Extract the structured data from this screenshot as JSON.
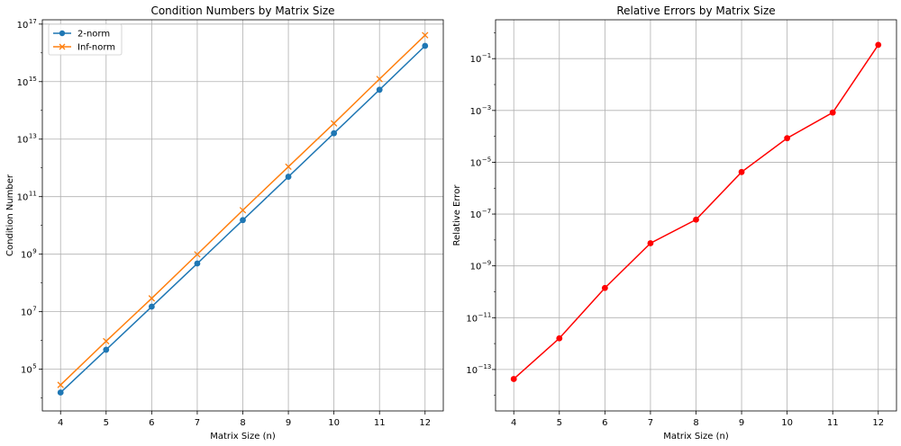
{
  "chart_data": [
    {
      "type": "line",
      "title": "Condition Numbers by Matrix Size",
      "xlabel": "Matrix Size (n)",
      "ylabel": "Condition Number",
      "yscale": "log",
      "grid": true,
      "legend_position": "top-left",
      "x": [
        4,
        5,
        6,
        7,
        8,
        9,
        10,
        11,
        12
      ],
      "xlim": [
        3.6,
        12.4
      ],
      "ylim_exp": [
        3.55,
        17.15
      ],
      "yticks": [
        "10^5",
        "10^7",
        "10^9",
        "10^11",
        "10^13",
        "10^15",
        "10^17"
      ],
      "series": [
        {
          "name": "2-norm",
          "color": "#1f77b4",
          "marker": "circle",
          "values": [
            15500.0,
            477000.0,
            15000000.0,
            475000000.0,
            15300000000.0,
            493000000000.0,
            16000000000000.0,
            522000000000000.0,
            1.75e+16
          ]
        },
        {
          "name": "Inf-norm",
          "color": "#ff7f0e",
          "marker": "x",
          "values": [
            28500.0,
            944000.0,
            29100000.0,
            985000000.0,
            33900000000.0,
            1100000000000.0,
            35400000000000.0,
            1230000000000000.0,
            4.11e+16
          ]
        }
      ]
    },
    {
      "type": "line",
      "title": "Relative Errors by Matrix Size",
      "xlabel": "Matrix Size (n)",
      "ylabel": "Relative Error",
      "yscale": "log",
      "grid": true,
      "x": [
        4,
        5,
        6,
        7,
        8,
        9,
        10,
        11,
        12
      ],
      "xlim": [
        3.6,
        12.4
      ],
      "ylim_exp": [
        -14.6,
        0.5
      ],
      "yticks": [
        "10^-13",
        "10^-11",
        "10^-9",
        "10^-7",
        "10^-5",
        "10^-3",
        "10^-1"
      ],
      "series": [
        {
          "name": "",
          "color": "#ff0000",
          "marker": "circle",
          "values": [
            4.3e-14,
            1.6e-12,
            1.4e-10,
            7.5e-09,
            6.1e-08,
            4.2e-06,
            8.5e-05,
            0.00083,
            0.34
          ]
        }
      ]
    }
  ]
}
